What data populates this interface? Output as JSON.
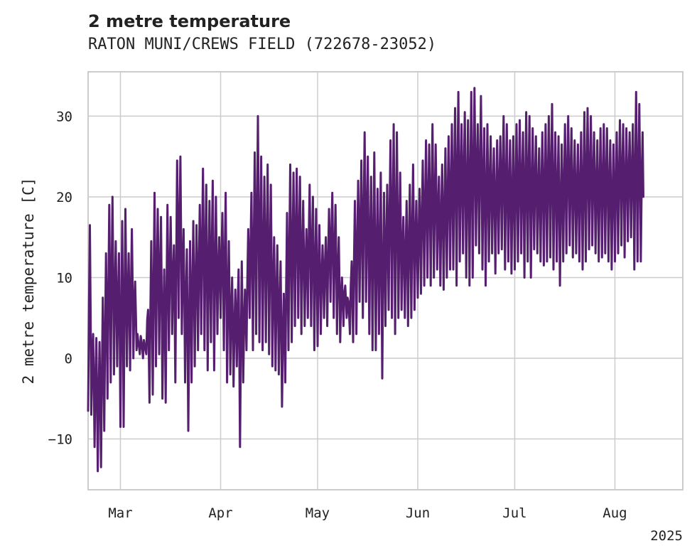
{
  "chart_data": {
    "type": "line",
    "title": "2 metre temperature",
    "subtitle": "RATON MUNI/CREWS FIELD (722678-23052)",
    "ylabel": "2 metre temperature [C]",
    "xlabel": "",
    "x_year_label": "2025",
    "ylim": [
      -16.3,
      35.5
    ],
    "xlim": [
      "2025-02-19",
      "2025-08-22"
    ],
    "grid": true,
    "y_ticks": [
      -10,
      0,
      10,
      20,
      30
    ],
    "x_ticks": [
      {
        "date": "2025-03-01",
        "label": "Mar"
      },
      {
        "date": "2025-04-01",
        "label": "Apr"
      },
      {
        "date": "2025-05-01",
        "label": "May"
      },
      {
        "date": "2025-06-01",
        "label": "Jun"
      },
      {
        "date": "2025-07-01",
        "label": "Jul"
      },
      {
        "date": "2025-08-01",
        "label": "Aug"
      }
    ],
    "series": [
      {
        "color": "#561e6f",
        "daily_min_max": [
          [
            "2025-02-19",
            -6.5,
            16.5
          ],
          [
            "2025-02-20",
            -7.0,
            3.0
          ],
          [
            "2025-02-21",
            -11.0,
            2.5
          ],
          [
            "2025-02-22",
            -14.0,
            2.0
          ],
          [
            "2025-02-23",
            -13.5,
            7.5
          ],
          [
            "2025-02-24",
            -9.0,
            13.0
          ],
          [
            "2025-02-25",
            -5.0,
            19.0
          ],
          [
            "2025-02-26",
            -3.0,
            20.0
          ],
          [
            "2025-02-27",
            -2.0,
            14.5
          ],
          [
            "2025-02-28",
            -1.0,
            13.0
          ],
          [
            "2025-03-01",
            -8.5,
            17.0
          ],
          [
            "2025-03-02",
            -8.5,
            18.5
          ],
          [
            "2025-03-03",
            -1.0,
            13.0
          ],
          [
            "2025-03-04",
            -1.5,
            16.0
          ],
          [
            "2025-03-05",
            0.0,
            9.5
          ],
          [
            "2025-03-06",
            1.0,
            2.0
          ],
          [
            "2025-03-07",
            0.5,
            2.0
          ],
          [
            "2025-03-08",
            0.0,
            1.5
          ],
          [
            "2025-03-09",
            0.5,
            6.0
          ],
          [
            "2025-03-10",
            -5.5,
            14.5
          ],
          [
            "2025-03-11",
            -4.5,
            20.5
          ],
          [
            "2025-03-12",
            -1.0,
            18.5
          ],
          [
            "2025-03-13",
            0.5,
            17.5
          ],
          [
            "2025-03-14",
            -5.0,
            11.0
          ],
          [
            "2025-03-15",
            -5.5,
            19.0
          ],
          [
            "2025-03-16",
            1.0,
            17.5
          ],
          [
            "2025-03-17",
            3.0,
            14.0
          ],
          [
            "2025-03-18",
            -3.0,
            24.5
          ],
          [
            "2025-03-19",
            5.0,
            25.0
          ],
          [
            "2025-03-20",
            3.0,
            16.0
          ],
          [
            "2025-03-21",
            -3.0,
            13.5
          ],
          [
            "2025-03-22",
            -9.0,
            14.5
          ],
          [
            "2025-03-23",
            -3.0,
            17.0
          ],
          [
            "2025-03-24",
            -1.0,
            16.5
          ],
          [
            "2025-03-25",
            1.0,
            19.0
          ],
          [
            "2025-03-26",
            3.0,
            23.5
          ],
          [
            "2025-03-27",
            1.0,
            21.5
          ],
          [
            "2025-03-28",
            -1.5,
            19.5
          ],
          [
            "2025-03-29",
            2.0,
            22.0
          ],
          [
            "2025-03-30",
            -1.5,
            20.0
          ],
          [
            "2025-03-31",
            3.0,
            15.0
          ],
          [
            "2025-04-01",
            5.0,
            18.0
          ],
          [
            "2025-04-02",
            1.0,
            20.5
          ],
          [
            "2025-04-03",
            -3.0,
            14.5
          ],
          [
            "2025-04-04",
            -2.0,
            10.0
          ],
          [
            "2025-04-05",
            -3.5,
            8.5
          ],
          [
            "2025-04-06",
            -1.0,
            11.0
          ],
          [
            "2025-04-07",
            -11.0,
            12.0
          ],
          [
            "2025-04-08",
            -3.0,
            8.5
          ],
          [
            "2025-04-09",
            1.0,
            16.0
          ],
          [
            "2025-04-10",
            5.0,
            20.5
          ],
          [
            "2025-04-11",
            1.0,
            25.5
          ],
          [
            "2025-04-12",
            3.0,
            30.0
          ],
          [
            "2025-04-13",
            2.0,
            25.0
          ],
          [
            "2025-04-14",
            1.0,
            22.5
          ],
          [
            "2025-04-15",
            2.0,
            24.0
          ],
          [
            "2025-04-16",
            0.5,
            21.5
          ],
          [
            "2025-04-17",
            -1.0,
            15.0
          ],
          [
            "2025-04-18",
            -1.5,
            14.0
          ],
          [
            "2025-04-19",
            -2.0,
            12.0
          ],
          [
            "2025-04-20",
            -6.0,
            8.0
          ],
          [
            "2025-04-21",
            -3.0,
            18.0
          ],
          [
            "2025-04-22",
            1.0,
            24.0
          ],
          [
            "2025-04-23",
            2.0,
            23.0
          ],
          [
            "2025-04-24",
            4.0,
            23.5
          ],
          [
            "2025-04-25",
            5.0,
            22.5
          ],
          [
            "2025-04-26",
            3.0,
            19.5
          ],
          [
            "2025-04-27",
            4.0,
            16.0
          ],
          [
            "2025-04-28",
            5.0,
            21.5
          ],
          [
            "2025-04-29",
            4.0,
            20.0
          ],
          [
            "2025-04-30",
            1.0,
            18.5
          ],
          [
            "2025-05-01",
            1.5,
            16.5
          ],
          [
            "2025-05-02",
            3.0,
            14.0
          ],
          [
            "2025-05-03",
            5.0,
            15.0
          ],
          [
            "2025-05-04",
            4.0,
            18.5
          ],
          [
            "2025-05-05",
            7.0,
            20.5
          ],
          [
            "2025-05-06",
            5.0,
            19.0
          ],
          [
            "2025-05-07",
            3.0,
            15.0
          ],
          [
            "2025-05-08",
            2.0,
            10.0
          ],
          [
            "2025-05-09",
            4.0,
            9.0
          ],
          [
            "2025-05-10",
            5.0,
            7.0
          ],
          [
            "2025-05-11",
            3.0,
            12.0
          ],
          [
            "2025-05-12",
            2.0,
            19.5
          ],
          [
            "2025-05-13",
            3.0,
            22.0
          ],
          [
            "2025-05-14",
            7.0,
            24.5
          ],
          [
            "2025-05-15",
            5.0,
            28.0
          ],
          [
            "2025-05-16",
            7.0,
            25.0
          ],
          [
            "2025-05-17",
            3.0,
            22.5
          ],
          [
            "2025-05-18",
            1.0,
            25.5
          ],
          [
            "2025-05-19",
            1.0,
            21.0
          ],
          [
            "2025-05-20",
            3.0,
            23.0
          ],
          [
            "2025-05-21",
            -2.5,
            20.5
          ],
          [
            "2025-05-22",
            4.0,
            21.5
          ],
          [
            "2025-05-23",
            6.0,
            27.0
          ],
          [
            "2025-05-24",
            5.0,
            29.0
          ],
          [
            "2025-05-25",
            3.0,
            28.0
          ],
          [
            "2025-05-26",
            5.0,
            23.0
          ],
          [
            "2025-05-27",
            6.0,
            17.5
          ],
          [
            "2025-05-28",
            5.0,
            19.5
          ],
          [
            "2025-05-29",
            4.0,
            21.5
          ],
          [
            "2025-05-30",
            5.0,
            24.0
          ],
          [
            "2025-05-31",
            6.0,
            19.5
          ],
          [
            "2025-06-01",
            7.5,
            21.0
          ],
          [
            "2025-06-02",
            8.0,
            24.5
          ],
          [
            "2025-06-03",
            9.0,
            27.0
          ],
          [
            "2025-06-04",
            10.0,
            26.5
          ],
          [
            "2025-06-05",
            9.0,
            29.0
          ],
          [
            "2025-06-06",
            10.0,
            26.5
          ],
          [
            "2025-06-07",
            11.0,
            22.5
          ],
          [
            "2025-06-08",
            9.0,
            24.0
          ],
          [
            "2025-06-09",
            8.5,
            26.0
          ],
          [
            "2025-06-10",
            10.0,
            27.5
          ],
          [
            "2025-06-11",
            11.0,
            29.0
          ],
          [
            "2025-06-12",
            11.0,
            31.0
          ],
          [
            "2025-06-13",
            9.0,
            33.0
          ],
          [
            "2025-06-14",
            12.0,
            29.0
          ],
          [
            "2025-06-15",
            13.0,
            30.5
          ],
          [
            "2025-06-16",
            10.0,
            29.5
          ],
          [
            "2025-06-17",
            9.0,
            33.0
          ],
          [
            "2025-06-18",
            10.0,
            33.5
          ],
          [
            "2025-06-19",
            14.0,
            29.0
          ],
          [
            "2025-06-20",
            13.0,
            32.5
          ],
          [
            "2025-06-21",
            11.0,
            28.5
          ],
          [
            "2025-06-22",
            9.0,
            29.0
          ],
          [
            "2025-06-23",
            12.0,
            27.5
          ],
          [
            "2025-06-24",
            13.0,
            26.0
          ],
          [
            "2025-06-25",
            10.5,
            27.0
          ],
          [
            "2025-06-26",
            13.0,
            27.5
          ],
          [
            "2025-06-27",
            13.5,
            30.0
          ],
          [
            "2025-06-28",
            11.0,
            29.0
          ],
          [
            "2025-06-29",
            12.0,
            27.0
          ],
          [
            "2025-06-30",
            10.5,
            27.5
          ],
          [
            "2025-07-01",
            11.0,
            29.0
          ],
          [
            "2025-07-02",
            12.0,
            29.5
          ],
          [
            "2025-07-03",
            13.0,
            28.0
          ],
          [
            "2025-07-04",
            10.0,
            30.5
          ],
          [
            "2025-07-05",
            12.0,
            30.0
          ],
          [
            "2025-07-06",
            10.0,
            28.5
          ],
          [
            "2025-07-07",
            13.5,
            27.5
          ],
          [
            "2025-07-08",
            13.0,
            26.0
          ],
          [
            "2025-07-09",
            12.0,
            28.0
          ],
          [
            "2025-07-10",
            11.5,
            29.0
          ],
          [
            "2025-07-11",
            12.0,
            30.0
          ],
          [
            "2025-07-12",
            12.5,
            31.5
          ],
          [
            "2025-07-13",
            11.0,
            28.0
          ],
          [
            "2025-07-14",
            12.0,
            27.5
          ],
          [
            "2025-07-15",
            9.0,
            26.5
          ],
          [
            "2025-07-16",
            12.0,
            29.0
          ],
          [
            "2025-07-17",
            13.0,
            30.0
          ],
          [
            "2025-07-18",
            14.0,
            28.5
          ],
          [
            "2025-07-19",
            12.5,
            27.0
          ],
          [
            "2025-07-20",
            13.0,
            26.5
          ],
          [
            "2025-07-21",
            12.0,
            28.0
          ],
          [
            "2025-07-22",
            11.0,
            30.5
          ],
          [
            "2025-07-23",
            12.0,
            31.0
          ],
          [
            "2025-07-24",
            13.5,
            30.0
          ],
          [
            "2025-07-25",
            14.0,
            28.0
          ],
          [
            "2025-07-26",
            13.0,
            27.0
          ],
          [
            "2025-07-27",
            12.0,
            28.5
          ],
          [
            "2025-07-28",
            12.5,
            29.0
          ],
          [
            "2025-07-29",
            13.0,
            28.5
          ],
          [
            "2025-07-30",
            12.0,
            27.0
          ],
          [
            "2025-07-31",
            11.0,
            26.5
          ],
          [
            "2025-08-01",
            12.0,
            28.0
          ],
          [
            "2025-08-02",
            13.0,
            29.5
          ],
          [
            "2025-08-03",
            14.0,
            29.0
          ],
          [
            "2025-08-04",
            12.5,
            28.5
          ],
          [
            "2025-08-05",
            14.5,
            28.0
          ],
          [
            "2025-08-06",
            15.0,
            29.0
          ],
          [
            "2025-08-07",
            11.0,
            33.0
          ],
          [
            "2025-08-08",
            12.0,
            31.5
          ],
          [
            "2025-08-09",
            12.0,
            28.0
          ]
        ]
      }
    ]
  }
}
